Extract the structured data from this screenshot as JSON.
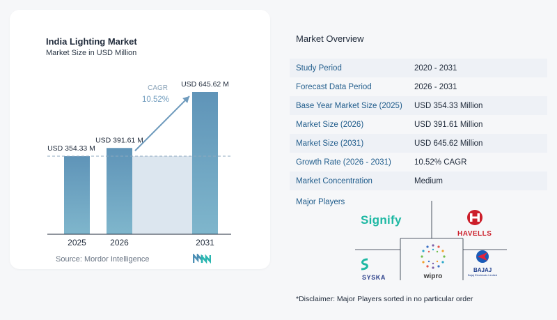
{
  "chart_data": {
    "type": "bar",
    "title": "India Lighting Market",
    "subtitle": "Market Size in USD Million",
    "categories": [
      "2025",
      "2026",
      "2031"
    ],
    "values": [
      354.33,
      391.61,
      645.62
    ],
    "data_labels": [
      "USD 354.33 M",
      "USD 391.61 M",
      "USD 645.62 M"
    ],
    "ylim": [
      0,
      700
    ],
    "grid": false,
    "annotation": {
      "label": "CAGR",
      "value": "10.52%"
    },
    "bar_color": "#5f94b8",
    "bar_color_light": "#7fb6cc",
    "shade_color": "#dce6ef"
  },
  "source": "Source: Mordor Intelligence",
  "overview": {
    "title": "Market Overview",
    "rows": [
      {
        "label": "Study Period",
        "value": "2020 - 2031"
      },
      {
        "label": "Forecast Data Period",
        "value": "2026 - 2031"
      },
      {
        "label": "Base Year Market Size (2025)",
        "value": "USD 354.33 Million"
      },
      {
        "label": "Market Size (2026)",
        "value": "USD 391.61 Million"
      },
      {
        "label": "Market Size (2031)",
        "value": "USD 645.62 Million"
      },
      {
        "label": "Growth Rate (2026 - 2031)",
        "value": "10.52% CAGR"
      },
      {
        "label": "Market Concentration",
        "value": "Medium"
      }
    ]
  },
  "players": {
    "title": "Major Players",
    "logos": [
      {
        "name": "Signify",
        "text": "Signify",
        "icon": "signify-logo"
      },
      {
        "name": "Havells",
        "text": "HAVELLS",
        "icon": "havells-logo"
      },
      {
        "name": "Syska",
        "text": "SYSKA",
        "icon": "syska-logo"
      },
      {
        "name": "Wipro",
        "text": "wipro",
        "icon": "wipro-logo"
      },
      {
        "name": "Bajaj",
        "text": "BAJAJ",
        "sub": "Bajaj Electricals Limited",
        "icon": "bajaj-logo"
      }
    ]
  },
  "disclaimer": "*Disclaimer: Major Players sorted in no particular order",
  "colors": {
    "accent": "#215d8c",
    "teal": "#1db8a3",
    "havells_red": "#cc1f2b"
  }
}
